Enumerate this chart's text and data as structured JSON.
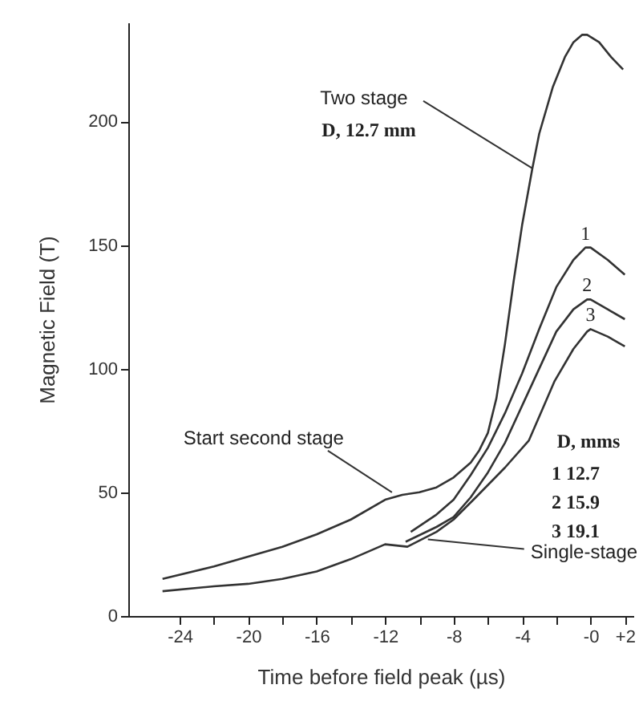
{
  "chart_data": {
    "type": "line",
    "xlabel": "Time before field peak (µs)",
    "ylabel": "Magnetic Field (T)",
    "xlim": [
      -27,
      2.5
    ],
    "ylim": [
      0,
      240
    ],
    "xticks": [
      -24,
      {
        "value": -22,
        "label": null
      },
      -20,
      {
        "value": -18,
        "label": null
      },
      -16,
      {
        "value": -14,
        "label": null
      },
      -12,
      {
        "value": -10,
        "label": null
      },
      -8,
      {
        "value": -6,
        "label": null
      },
      -4,
      {
        "value": -2,
        "label": null
      },
      {
        "value": 0,
        "label": "-0"
      },
      {
        "value": 2,
        "label": "+2"
      }
    ],
    "yticks": [
      0,
      50,
      100,
      150,
      200
    ],
    "grid": false,
    "marker": "none",
    "line_style": "solid",
    "series": [
      {
        "color": "#333333",
        "x": [
          -25,
          -22,
          -20,
          -18,
          -16,
          -14,
          -12,
          -11,
          -10,
          -9,
          -8,
          -7,
          -6.5,
          -6,
          -5.5,
          -5,
          -4.5,
          -4,
          -3.4,
          -3,
          -2.2,
          -1.5,
          -1,
          -0.5,
          -0.2,
          0.5,
          1.2,
          1.9
        ],
        "values": [
          15,
          20,
          24,
          28,
          33,
          39,
          47,
          49,
          50,
          52,
          56,
          62,
          67,
          74,
          88,
          110,
          135,
          158,
          181,
          195,
          214,
          226,
          232,
          235,
          235,
          232,
          226,
          221
        ]
      },
      {
        "name": "1",
        "color": "#333333",
        "x": [
          -10.5,
          -9,
          -8,
          -7,
          -6,
          -5,
          -4,
          -3,
          -2,
          -1,
          -0.3,
          0,
          1,
          2
        ],
        "values": [
          34,
          41,
          47,
          57,
          68,
          82,
          98,
          116,
          133,
          144,
          149,
          149,
          144,
          138
        ]
      },
      {
        "name": "2",
        "color": "#333333",
        "x": [
          -10.8,
          -9,
          -8,
          -7,
          -6,
          -5,
          -4,
          -3,
          -2,
          -1,
          -0.2,
          0,
          1,
          2
        ],
        "values": [
          30,
          36,
          40,
          48,
          58,
          70,
          85,
          100,
          115,
          124,
          128,
          128,
          124,
          120
        ]
      },
      {
        "name": "3",
        "color": "#333333",
        "x": [
          -25,
          -22,
          -20,
          -18,
          -16,
          -14,
          -12,
          -10.7,
          -9,
          -8,
          -6.7,
          -5,
          -3.6,
          -2.1,
          -1,
          -0.2,
          0,
          1,
          2
        ],
        "values": [
          10,
          12,
          13,
          15,
          18,
          23,
          29,
          28,
          34,
          39,
          48,
          60,
          71,
          95,
          108,
          115,
          116,
          113,
          109
        ]
      }
    ],
    "annotations": [
      {
        "text": "Two stage",
        "x": -3.4,
        "y": 181
      },
      "D, 12.7 mm",
      {
        "text": "Start second stage",
        "x": -11.6,
        "y": 50
      },
      "D, mms",
      "1 12.7",
      "2 15.9",
      "3 19.1",
      {
        "text": "Single-stage",
        "x": -9.5,
        "y": 31
      }
    ]
  }
}
